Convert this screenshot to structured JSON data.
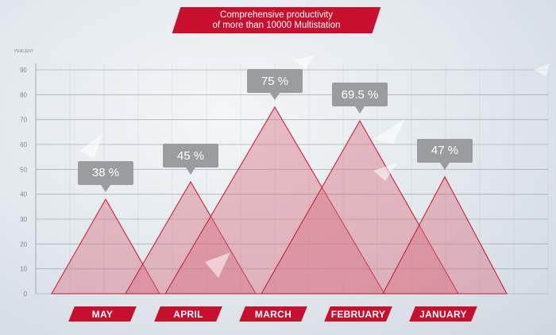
{
  "title": {
    "line1": "Comprehensive productivity",
    "line2": "of more than 10000 Multistation"
  },
  "colors": {
    "brand_red": "#c8102e",
    "triangle_fill": "#d86c7c",
    "triangle_stroke": "#c8102e",
    "callout_gray": "#9a9ca0",
    "grid": "#9aa3ab"
  },
  "chart_data": {
    "type": "area",
    "ylabel": "PERCENT",
    "ylim": [
      0,
      90
    ],
    "yticks": [
      0,
      10,
      20,
      30,
      40,
      50,
      60,
      70,
      80,
      90
    ],
    "grid": true,
    "categories": [
      "MAY",
      "APRIL",
      "MARCH",
      "FEBRUARY",
      "JANUARY"
    ],
    "values": [
      38,
      45,
      75,
      69.5,
      47
    ],
    "data_labels": [
      "38 %",
      "45 %",
      "75 %",
      "69.5 %",
      "47 %"
    ]
  }
}
